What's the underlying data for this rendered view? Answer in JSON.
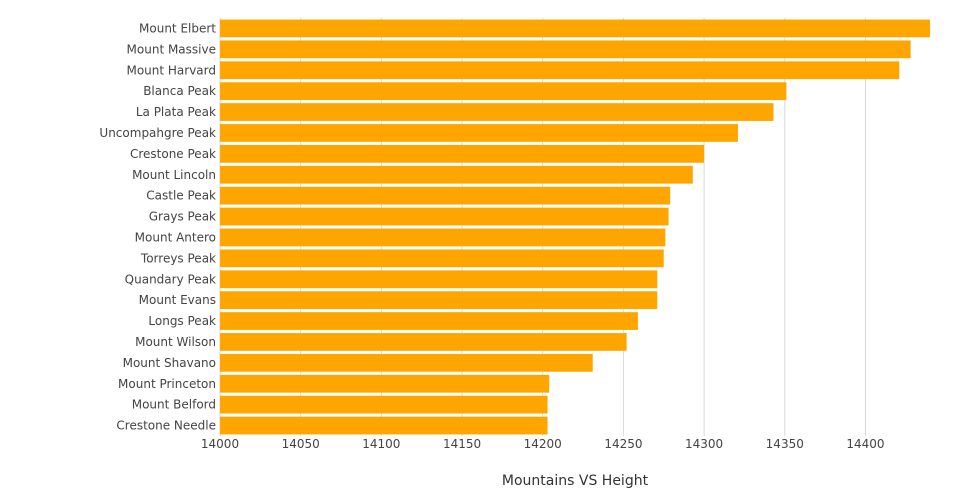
{
  "chart_data": {
    "type": "bar",
    "orientation": "horizontal",
    "title": "",
    "xlabel": "Mountains VS Height",
    "ylabel": "",
    "xlim": [
      14000,
      14440
    ],
    "xticks": [
      14000,
      14050,
      14100,
      14150,
      14200,
      14250,
      14300,
      14350,
      14400
    ],
    "grid": true,
    "color": "#FFA500",
    "categories": [
      "Mount Elbert",
      "Mount Massive",
      "Mount Harvard",
      "Blanca Peak",
      "La Plata Peak",
      "Uncompahgre Peak",
      "Crestone Peak",
      "Mount Lincoln",
      "Castle Peak",
      "Grays Peak",
      "Mount Antero",
      "Torreys Peak",
      "Quandary Peak",
      "Mount Evans",
      "Longs Peak",
      "Mount Wilson",
      "Mount Shavano",
      "Mount Princeton",
      "Mount Belford",
      "Crestone Needle"
    ],
    "values": [
      14440,
      14428,
      14421,
      14351,
      14343,
      14321,
      14300,
      14293,
      14279,
      14278,
      14276,
      14275,
      14271,
      14271,
      14259,
      14252,
      14231,
      14204,
      14203,
      14203
    ]
  }
}
